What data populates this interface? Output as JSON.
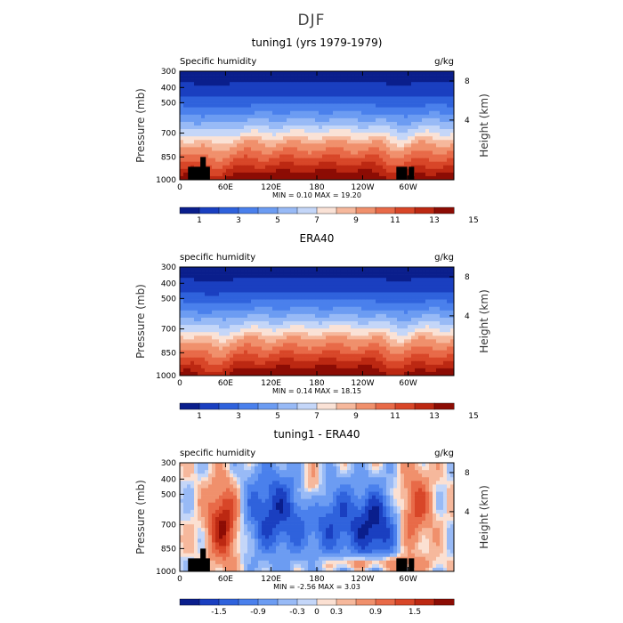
{
  "figure_title": "DJF",
  "chart_data": [
    {
      "type": "heatmap",
      "title": "tuning1 (yrs 1979-1979)",
      "left_label": "Specific humidity",
      "right_label": "g/kg",
      "ylabel": "Pressure (mb)",
      "y2label": "Height (km)",
      "x_ticks": [
        "0",
        "60E",
        "120E",
        "180",
        "120W",
        "60W"
      ],
      "y_ticks": [
        "300",
        "400",
        "500",
        "700",
        "850",
        "1000"
      ],
      "y2_ticks": [
        "8",
        "4"
      ],
      "stats_text": "MIN =    0.10   MAX =   19.20",
      "min": 0.1,
      "max": 19.2,
      "colorbar_labels": [
        "1",
        "3",
        "5",
        "7",
        "9",
        "11",
        "13",
        "15"
      ],
      "colorbar_colors": [
        "#0a1e8c",
        "#1a3fc0",
        "#2f62dc",
        "#4a80ec",
        "#6c9cf2",
        "#98baf6",
        "#c4d6f8",
        "#fae2d6",
        "#f6b89c",
        "#f0906c",
        "#e86a48",
        "#d84628",
        "#bc2812",
        "#8c0c04"
      ],
      "topography": "black masks near 20E-40E and 60W-80W below 850 mb"
    },
    {
      "type": "heatmap",
      "title": "ERA40",
      "left_label": "specific humidity",
      "right_label": "g/kg",
      "ylabel": "Pressure (mb)",
      "y2label": "Height (km)",
      "x_ticks": [
        "0",
        "60E",
        "120E",
        "180",
        "120W",
        "60W"
      ],
      "y_ticks": [
        "300",
        "400",
        "500",
        "700",
        "850",
        "1000"
      ],
      "y2_ticks": [
        "8",
        "4"
      ],
      "stats_text": "MIN =    0.14   MAX =   18.15",
      "min": 0.14,
      "max": 18.15,
      "colorbar_labels": [
        "1",
        "3",
        "5",
        "7",
        "9",
        "11",
        "13",
        "15"
      ],
      "colorbar_colors": [
        "#0a1e8c",
        "#1a3fc0",
        "#2f62dc",
        "#4a80ec",
        "#6c9cf2",
        "#98baf6",
        "#c4d6f8",
        "#fae2d6",
        "#f6b89c",
        "#f0906c",
        "#e86a48",
        "#d84628",
        "#bc2812",
        "#8c0c04"
      ]
    },
    {
      "type": "heatmap",
      "title": "tuning1 - ERA40",
      "left_label": "specific humidity",
      "right_label": "g/kg",
      "ylabel": "Pressure (mb)",
      "y2label": "Height (km)",
      "x_ticks": [
        "0",
        "60E",
        "120E",
        "180",
        "120W",
        "60W"
      ],
      "y_ticks": [
        "300",
        "400",
        "500",
        "700",
        "850",
        "1000"
      ],
      "y2_ticks": [
        "8",
        "4"
      ],
      "stats_text": "MIN =   -2.56   MAX =   3.03",
      "min": -2.56,
      "max": 3.03,
      "colorbar_labels": [
        "-1.5",
        "-0.9",
        "-0.3",
        "0",
        "0.3",
        "0.9",
        "1.5"
      ],
      "colorbar_colors": [
        "#0a1e8c",
        "#1a3fc0",
        "#2f62dc",
        "#4a80ec",
        "#6c9cf2",
        "#98baf6",
        "#c4d6f8",
        "#fbe0d2",
        "#f6b89c",
        "#f0906c",
        "#e86a48",
        "#d84628",
        "#bc2812",
        "#8c0c04"
      ],
      "topography": "black masks near 20E-40E and 60W-80W below 850 mb"
    }
  ]
}
